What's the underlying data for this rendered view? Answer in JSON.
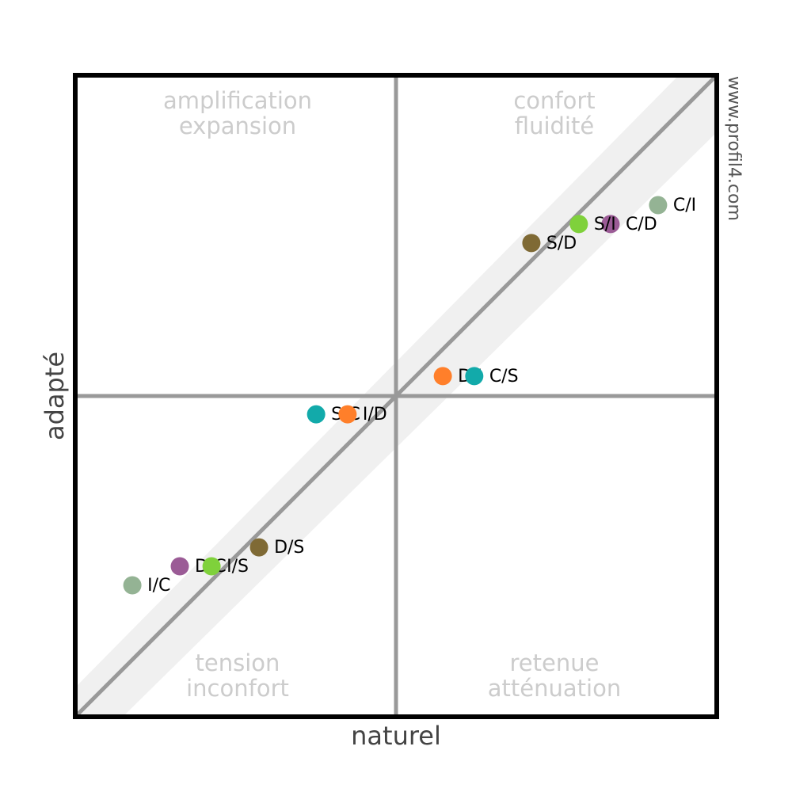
{
  "chart_data": {
    "type": "scatter",
    "x_label": "naturel",
    "y_label": "adapté",
    "watermark": "www.profil4.com",
    "quadrants": {
      "top_left": [
        "amplification",
        "expansion"
      ],
      "top_right": [
        "confort",
        "fluidité"
      ],
      "bottom_left": [
        "tension",
        "inconfort"
      ],
      "bottom_right": [
        "retenue",
        "atténuation"
      ]
    },
    "xlim": [
      -100,
      100
    ],
    "ylim": [
      -100,
      100
    ],
    "series": [
      {
        "name": "C/I",
        "color": "#94b394",
        "x": 81.7,
        "y": 59.5
      },
      {
        "name": "C/D",
        "color": "#9b5b96",
        "x": 66.9,
        "y": 53.6
      },
      {
        "name": "S/I",
        "color": "#7fd13b",
        "x": 57.0,
        "y": 53.6
      },
      {
        "name": "S/D",
        "color": "#7f6a35",
        "x": 42.2,
        "y": 47.7
      },
      {
        "name": "D/I",
        "color": "#ff7f2a",
        "x": 14.6,
        "y": 6.2
      },
      {
        "name": "C/S",
        "color": "#12aaaa",
        "x": 24.4,
        "y": 6.2
      },
      {
        "name": "S/C",
        "color": "#12aaaa",
        "x": -24.9,
        "y": -5.7
      },
      {
        "name": "I/D",
        "color": "#ff7f2a",
        "x": -15.1,
        "y": -5.7
      },
      {
        "name": "D/S",
        "color": "#7f6a35",
        "x": -42.7,
        "y": -47.2
      },
      {
        "name": "D/C",
        "color": "#9b5b96",
        "x": -67.4,
        "y": -53.1
      },
      {
        "name": "I/S",
        "color": "#7fd13b",
        "x": -57.5,
        "y": -53.1
      },
      {
        "name": "I/C",
        "color": "#94b394",
        "x": -82.2,
        "y": -59.0
      }
    ]
  }
}
